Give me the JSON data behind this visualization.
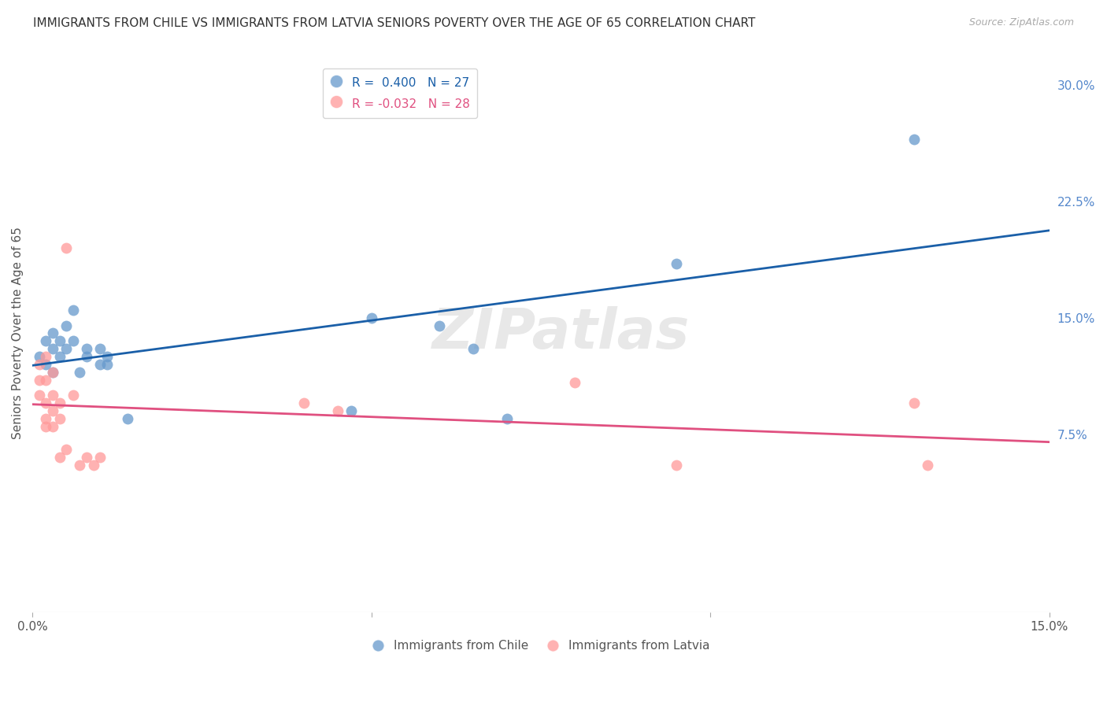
{
  "title": "IMMIGRANTS FROM CHILE VS IMMIGRANTS FROM LATVIA SENIORS POVERTY OVER THE AGE OF 65 CORRELATION CHART",
  "source": "Source: ZipAtlas.com",
  "ylabel_label": "Seniors Poverty Over the Age of 65",
  "right_yticks": [
    7.5,
    15.0,
    22.5,
    30.0
  ],
  "xlim": [
    0.0,
    0.15
  ],
  "ylim": [
    -0.04,
    0.32
  ],
  "chile_color": "#6699cc",
  "latvia_color": "#ff9999",
  "chile_line_color": "#1a5fa8",
  "latvia_line_color": "#e05080",
  "chile_R": 0.4,
  "chile_N": 27,
  "latvia_R": -0.032,
  "latvia_N": 28,
  "watermark": "ZIPatlas",
  "chile_x": [
    0.001,
    0.002,
    0.002,
    0.003,
    0.003,
    0.003,
    0.004,
    0.004,
    0.005,
    0.005,
    0.006,
    0.006,
    0.007,
    0.008,
    0.008,
    0.01,
    0.01,
    0.011,
    0.011,
    0.014,
    0.047,
    0.05,
    0.06,
    0.065,
    0.07,
    0.095,
    0.13
  ],
  "chile_y": [
    0.125,
    0.135,
    0.12,
    0.13,
    0.14,
    0.115,
    0.135,
    0.125,
    0.145,
    0.13,
    0.135,
    0.155,
    0.115,
    0.125,
    0.13,
    0.12,
    0.13,
    0.12,
    0.125,
    0.085,
    0.09,
    0.15,
    0.145,
    0.13,
    0.085,
    0.185,
    0.265
  ],
  "latvia_x": [
    0.001,
    0.001,
    0.001,
    0.002,
    0.002,
    0.002,
    0.002,
    0.002,
    0.003,
    0.003,
    0.003,
    0.003,
    0.004,
    0.004,
    0.004,
    0.005,
    0.005,
    0.006,
    0.007,
    0.008,
    0.009,
    0.01,
    0.04,
    0.045,
    0.08,
    0.095,
    0.13,
    0.132
  ],
  "latvia_y": [
    0.12,
    0.11,
    0.1,
    0.125,
    0.11,
    0.095,
    0.085,
    0.08,
    0.115,
    0.1,
    0.09,
    0.08,
    0.095,
    0.085,
    0.06,
    0.195,
    0.065,
    0.1,
    0.055,
    0.06,
    0.055,
    0.06,
    0.095,
    0.09,
    0.108,
    0.055,
    0.095,
    0.055
  ],
  "background_color": "#ffffff",
  "grid_color": "#dddddd"
}
